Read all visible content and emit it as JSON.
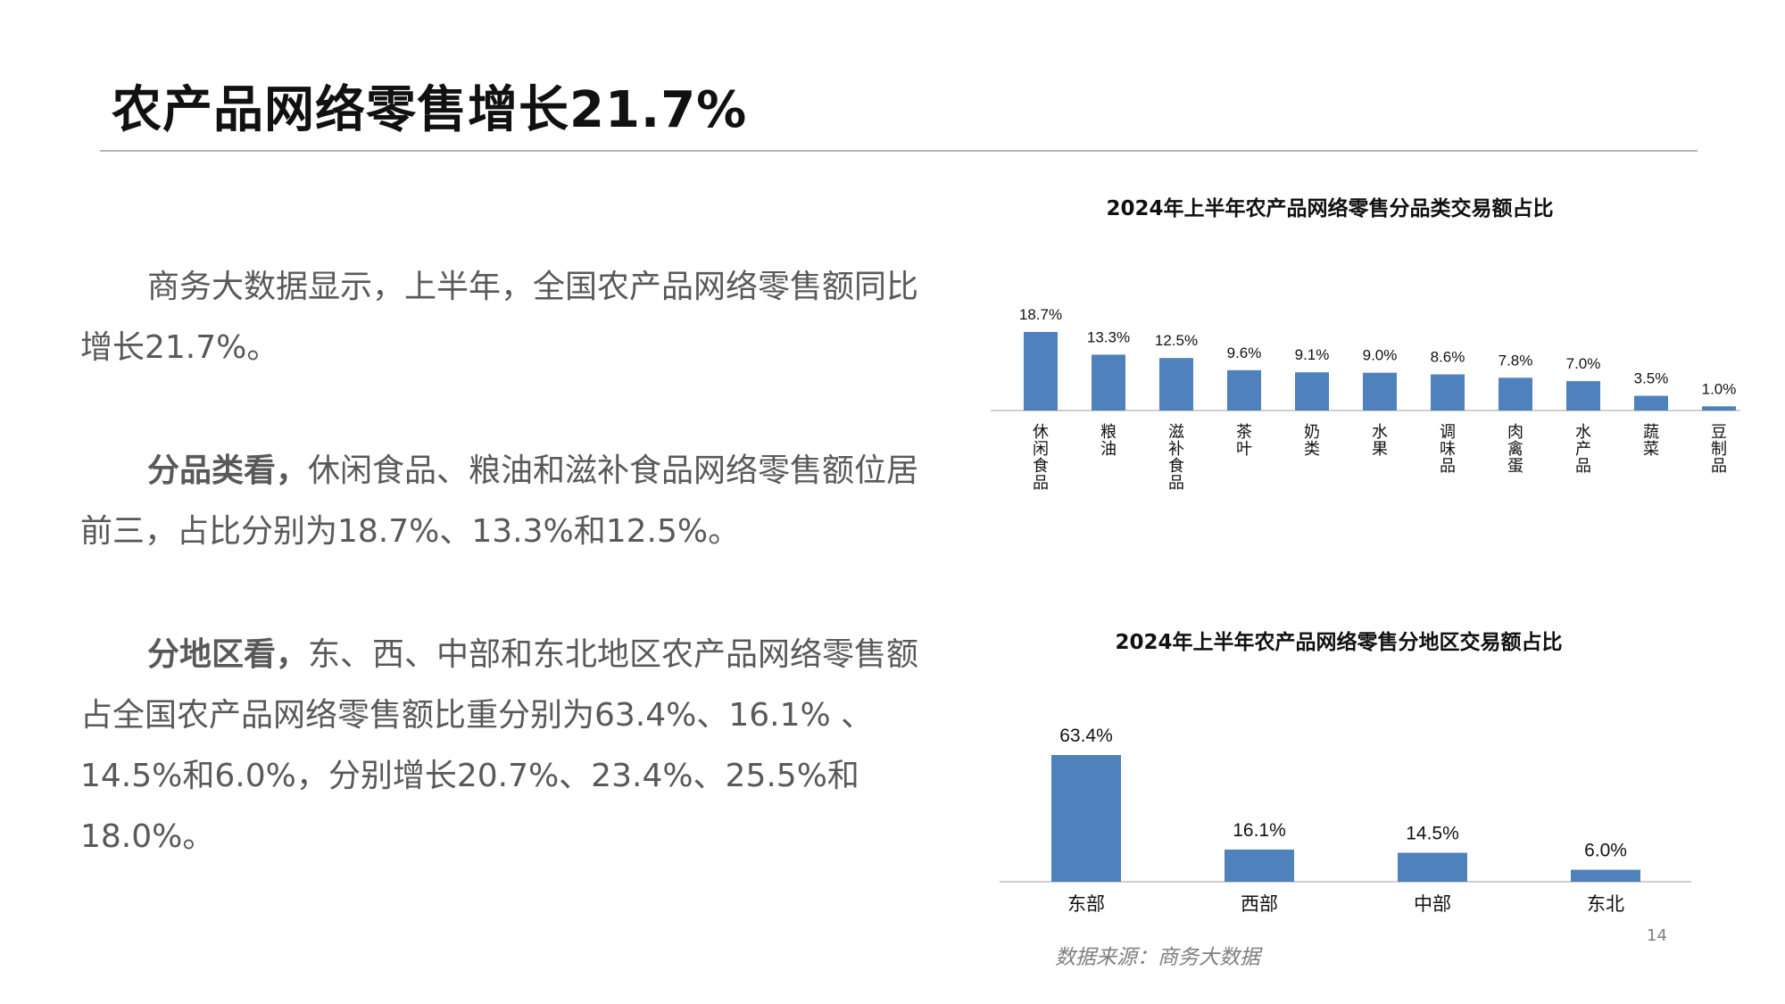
{
  "slide": {
    "title": "农产品网络零售增长21.7%",
    "paragraphs": [
      {
        "bold": "",
        "text": "商务大数据显示，上半年，全国农产品网络零售额同比增长21.7%。"
      },
      {
        "bold": "分品类看，",
        "text": "休闲食品、粮油和滋补食品网络零售额位居前三，占比分别为18.7%、13.3%和12.5%。"
      },
      {
        "bold": "分地区看，",
        "text": "东、西、中部和东北地区农产品网络零售额占全国农产品网络零售额比重分别为63.4%、16.1% 、14.5%和6.0%，分别增长20.7%、23.4%、25.5%和18.0%。"
      }
    ],
    "source": "数据来源：商务大数据",
    "page_number": "14"
  },
  "chart_data": [
    {
      "type": "bar",
      "title": "2024年上半年农产品网络零售分品类交易额占比",
      "categories": [
        "休闲食品",
        "粮油",
        "滋补食品",
        "茶叶",
        "奶类",
        "水果",
        "调味品",
        "肉禽蛋",
        "水产品",
        "蔬菜",
        "豆制品"
      ],
      "values": [
        18.7,
        13.3,
        12.5,
        9.6,
        9.1,
        9.0,
        8.6,
        7.8,
        7.0,
        3.5,
        1.0
      ],
      "data_labels": [
        "18.7%",
        "13.3%",
        "12.5%",
        "9.6%",
        "9.1%",
        "9.0%",
        "8.6%",
        "7.8%",
        "7.0%",
        "3.5%",
        "1.0%"
      ],
      "ylim": [
        0,
        18.7
      ],
      "grid": false,
      "color": "#4f81bd"
    },
    {
      "type": "bar",
      "title": "2024年上半年农产品网络零售分地区交易额占比",
      "categories": [
        "东部",
        "西部",
        "中部",
        "东北"
      ],
      "values": [
        63.4,
        16.1,
        14.5,
        6.0
      ],
      "data_labels": [
        "63.4%",
        "16.1%",
        "14.5%",
        "6.0%"
      ],
      "ylim": [
        0,
        63.4
      ],
      "grid": false,
      "color": "#4f81bd"
    }
  ]
}
